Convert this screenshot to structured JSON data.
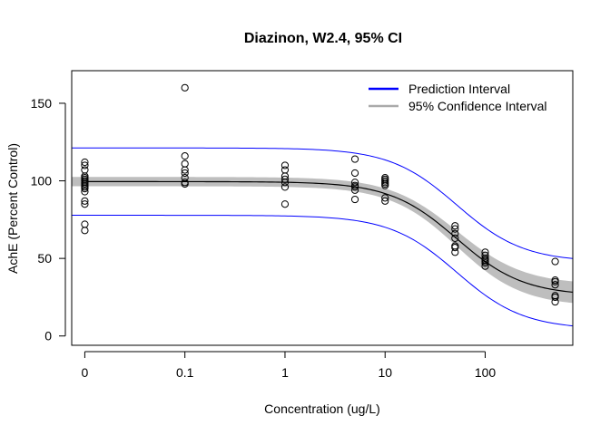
{
  "chart_data": {
    "type": "scatter",
    "title": "Diazinon, W2.4, 95% CI",
    "xlabel": "Concentration (ug/L)",
    "ylabel": "AchE (Percent Control)",
    "x_scale": "log",
    "x_tick_labels": [
      "0",
      "0.1",
      "1",
      "10",
      "100"
    ],
    "x_tick_values": [
      0.01,
      0.1,
      1,
      10,
      100
    ],
    "y_ticks": [
      0,
      50,
      100,
      150
    ],
    "xlim": [
      0.0074,
      750
    ],
    "ylim": [
      -6,
      171
    ],
    "grid": false,
    "legend": {
      "position": "top-right",
      "entries": [
        {
          "label": "Prediction Interval",
          "color": "#0000ff"
        },
        {
          "label": "95% Confidence Interval",
          "color": "#aaaaaa"
        }
      ]
    },
    "fit": {
      "model": "W2.4",
      "lower": 26,
      "upper": 99.5,
      "ec_midpoint": 52,
      "slope": 1.3,
      "ci_halfwidth_at_plateau": 3,
      "ci_halfwidth_at_tail": 7,
      "pi_halfwidth": 21.7
    },
    "series": [
      {
        "name": "Observations",
        "points": [
          {
            "x": 0.01,
            "y": 68
          },
          {
            "x": 0.01,
            "y": 72
          },
          {
            "x": 0.01,
            "y": 85
          },
          {
            "x": 0.01,
            "y": 87
          },
          {
            "x": 0.01,
            "y": 93
          },
          {
            "x": 0.01,
            "y": 95
          },
          {
            "x": 0.01,
            "y": 96
          },
          {
            "x": 0.01,
            "y": 97
          },
          {
            "x": 0.01,
            "y": 98
          },
          {
            "x": 0.01,
            "y": 99
          },
          {
            "x": 0.01,
            "y": 100
          },
          {
            "x": 0.01,
            "y": 101
          },
          {
            "x": 0.01,
            "y": 102
          },
          {
            "x": 0.01,
            "y": 103
          },
          {
            "x": 0.01,
            "y": 107
          },
          {
            "x": 0.01,
            "y": 110
          },
          {
            "x": 0.01,
            "y": 112
          },
          {
            "x": 0.1,
            "y": 98
          },
          {
            "x": 0.1,
            "y": 99
          },
          {
            "x": 0.1,
            "y": 102
          },
          {
            "x": 0.1,
            "y": 105
          },
          {
            "x": 0.1,
            "y": 107
          },
          {
            "x": 0.1,
            "y": 111
          },
          {
            "x": 0.1,
            "y": 116
          },
          {
            "x": 0.1,
            "y": 160
          },
          {
            "x": 1,
            "y": 85
          },
          {
            "x": 1,
            "y": 96
          },
          {
            "x": 1,
            "y": 99
          },
          {
            "x": 1,
            "y": 101
          },
          {
            "x": 1,
            "y": 103
          },
          {
            "x": 1,
            "y": 107
          },
          {
            "x": 1,
            "y": 110
          },
          {
            "x": 5,
            "y": 88
          },
          {
            "x": 5,
            "y": 94
          },
          {
            "x": 5,
            "y": 96
          },
          {
            "x": 5,
            "y": 97
          },
          {
            "x": 5,
            "y": 99
          },
          {
            "x": 5,
            "y": 105
          },
          {
            "x": 5,
            "y": 114
          },
          {
            "x": 10,
            "y": 87
          },
          {
            "x": 10,
            "y": 89
          },
          {
            "x": 10,
            "y": 97
          },
          {
            "x": 10,
            "y": 98
          },
          {
            "x": 10,
            "y": 99
          },
          {
            "x": 10,
            "y": 100
          },
          {
            "x": 10,
            "y": 101
          },
          {
            "x": 10,
            "y": 102
          },
          {
            "x": 50,
            "y": 54
          },
          {
            "x": 50,
            "y": 57
          },
          {
            "x": 50,
            "y": 58
          },
          {
            "x": 50,
            "y": 63
          },
          {
            "x": 50,
            "y": 66
          },
          {
            "x": 50,
            "y": 69
          },
          {
            "x": 50,
            "y": 71
          },
          {
            "x": 100,
            "y": 45
          },
          {
            "x": 100,
            "y": 47
          },
          {
            "x": 100,
            "y": 48
          },
          {
            "x": 100,
            "y": 49
          },
          {
            "x": 100,
            "y": 50
          },
          {
            "x": 100,
            "y": 52
          },
          {
            "x": 100,
            "y": 54
          },
          {
            "x": 500,
            "y": 22
          },
          {
            "x": 500,
            "y": 25
          },
          {
            "x": 500,
            "y": 26
          },
          {
            "x": 500,
            "y": 33
          },
          {
            "x": 500,
            "y": 35
          },
          {
            "x": 500,
            "y": 36
          },
          {
            "x": 500,
            "y": 48
          }
        ]
      }
    ]
  }
}
